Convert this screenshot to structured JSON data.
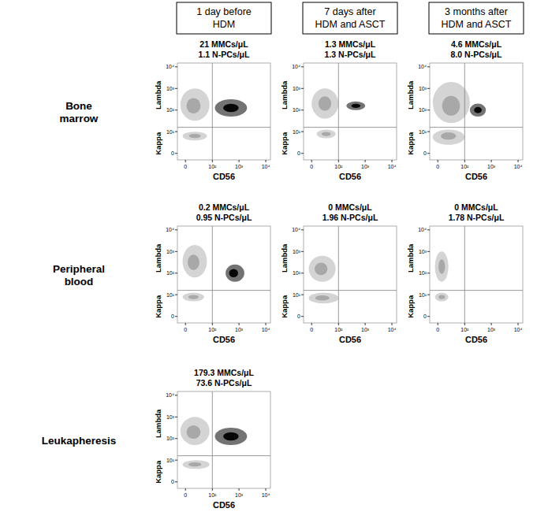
{
  "column_headers": [
    [
      "1 day before",
      "HDM"
    ],
    [
      "7 days after",
      "HDM and ASCT"
    ],
    [
      "3 months after",
      "HDM and ASCT"
    ]
  ],
  "row_labels": [
    [
      "Bone",
      "marrow"
    ],
    [
      "Peripheral",
      "blood"
    ],
    [
      "Leukapheresis"
    ]
  ],
  "chart_data": [
    {
      "type": "scatter",
      "title": "21 MMCs/μL",
      "subtitle": "1.1 N-PCs/μL",
      "xlabel": "CD56",
      "y_labels": {
        "upper": "Lambda",
        "lower": "Kappa"
      },
      "log": true,
      "xlim": [
        -15,
        15000
      ],
      "ylim": [
        -1.5,
        15000
      ],
      "xticks": [
        0,
        {
          "value": 100,
          "label": "10²"
        },
        {
          "value": 1000,
          "label": "10³"
        },
        {
          "value": 10000,
          "label": "10⁴"
        }
      ],
      "yticks": [
        0,
        {
          "value": 10,
          "label": "10¹"
        },
        {
          "value": 100,
          "label": "10²"
        },
        {
          "value": 1000,
          "label": "10³"
        },
        {
          "value": 10000,
          "label": "10⁴"
        }
      ],
      "gate": {
        "x": 100,
        "y": 16
      },
      "series": [
        {
          "color": "#a0a0a0",
          "x": [
            15,
            18
          ],
          "values": [
            158,
            6.2
          ],
          "x_range": [
            [
              -9,
              78
            ],
            [
              -5,
              62
            ]
          ],
          "y_range": [
            [
              32,
              1000
            ],
            [
              3.7,
              10
            ]
          ]
        },
        {
          "color": "#000000",
          "x": [
            500
          ],
          "values": [
            126
          ],
          "x_range": [
            [
              125,
              2000
            ]
          ],
          "y_range": [
            [
              50,
              316
            ]
          ]
        }
      ]
    },
    {
      "type": "scatter",
      "title": "1.3 MMCs/μL",
      "subtitle": "1.3 N-PCs/μL",
      "xlabel": "CD56",
      "y_labels": {
        "upper": "Lambda",
        "lower": "Kappa"
      },
      "log": true,
      "xlim": [
        -15,
        15000
      ],
      "ylim": [
        -1.5,
        15000
      ],
      "xticks": [
        0,
        {
          "value": 100,
          "label": "10²"
        },
        {
          "value": 1000,
          "label": "10³"
        },
        {
          "value": 10000,
          "label": "10⁴"
        }
      ],
      "yticks": [
        0,
        {
          "value": 10,
          "label": "10¹"
        },
        {
          "value": 100,
          "label": "10²"
        },
        {
          "value": 1000,
          "label": "10³"
        },
        {
          "value": 10000,
          "label": "10⁴"
        }
      ],
      "gate": {
        "x": 100,
        "y": 16
      },
      "series": [
        {
          "color": "#a0a0a0",
          "x": [
            28,
            32
          ],
          "values": [
            200,
            7.8
          ],
          "x_range": [
            [
              0,
              99
            ],
            [
              9,
              78
            ]
          ],
          "y_range": [
            [
              40,
              1000
            ],
            [
              4.8,
              12.5
            ]
          ]
        },
        {
          "color": "#000000",
          "x": [
            450
          ],
          "values": [
            158
          ],
          "x_range": [
            [
              200,
              1000
            ]
          ],
          "y_range": [
            [
              100,
              251
            ]
          ]
        }
      ]
    },
    {
      "type": "scatter",
      "title": "4.6 MMCs/μL",
      "subtitle": "8.0 N-PCs/μL",
      "xlabel": "CD56",
      "y_labels": {
        "upper": "Lambda",
        "lower": "Kappa"
      },
      "log": true,
      "xlim": [
        -15,
        15000
      ],
      "ylim": [
        -1.5,
        15000
      ],
      "xticks": [
        0,
        {
          "value": 100,
          "label": "10²"
        },
        {
          "value": 1000,
          "label": "10³"
        },
        {
          "value": 10000,
          "label": "10⁴"
        }
      ],
      "yticks": [
        0,
        {
          "value": 10,
          "label": "10¹"
        },
        {
          "value": 100,
          "label": "10²"
        },
        {
          "value": 1000,
          "label": "10³"
        },
        {
          "value": 10000,
          "label": "10⁴"
        }
      ],
      "gate": {
        "x": 100,
        "y": 16
      },
      "series": [
        {
          "color": "#a0a0a0",
          "x": [
            28,
            21
          ],
          "values": [
            158,
            6.2
          ],
          "x_range": [
            [
              -9,
              157
            ],
            [
              -9,
              99
            ]
          ],
          "y_range": [
            [
              25,
              2000
            ],
            [
              2.1,
              12.5
            ]
          ]
        },
        {
          "color": "#000000",
          "x": [
            316
          ],
          "values": [
            100
          ],
          "x_range": [
            [
              157,
              628
            ]
          ],
          "y_range": [
            [
              50,
              200
            ]
          ]
        }
      ]
    },
    {
      "type": "scatter",
      "title": "0.2 MMCs/μL",
      "subtitle": "0.95 N-PCs/μL",
      "xlabel": "CD56",
      "y_labels": {
        "upper": "Lambda",
        "lower": "Kappa"
      },
      "log": true,
      "xlim": [
        -15,
        15000
      ],
      "ylim": [
        -1.5,
        15000
      ],
      "xticks": [
        0,
        {
          "value": 100,
          "label": "10²"
        },
        {
          "value": 1000,
          "label": "10³"
        },
        {
          "value": 10000,
          "label": "10⁴"
        }
      ],
      "yticks": [
        0,
        {
          "value": 10,
          "label": "10¹"
        },
        {
          "value": 100,
          "label": "10²"
        },
        {
          "value": 1000,
          "label": "10³"
        },
        {
          "value": 10000,
          "label": "10⁴"
        }
      ],
      "gate": {
        "x": 100,
        "y": 16
      },
      "series": [
        {
          "color": "#a0a0a0",
          "x": [
            15,
            15
          ],
          "values": [
            316,
            7.8
          ],
          "x_range": [
            [
              -5,
              62
            ],
            [
              -5,
              48
            ]
          ],
          "y_range": [
            [
              63,
              2000
            ],
            [
              4.8,
              12.5
            ]
          ]
        },
        {
          "color": "#000000",
          "x": [
            628
          ],
          "values": [
            100
          ],
          "x_range": [
            [
              316,
              1585
            ]
          ],
          "y_range": [
            [
              40,
              251
            ]
          ]
        }
      ]
    },
    {
      "type": "scatter",
      "title": "0 MMCs/μL",
      "subtitle": "1.96 N-PCs/μL",
      "xlabel": "CD56",
      "y_labels": {
        "upper": "Lambda",
        "lower": "Kappa"
      },
      "log": true,
      "xlim": [
        -15,
        15000
      ],
      "ylim": [
        -1.5,
        15000
      ],
      "xticks": [
        0,
        {
          "value": 100,
          "label": "10²"
        },
        {
          "value": 1000,
          "label": "10³"
        },
        {
          "value": 10000,
          "label": "10⁴"
        }
      ],
      "yticks": [
        0,
        {
          "value": 10,
          "label": "10¹"
        },
        {
          "value": 100,
          "label": "10²"
        },
        {
          "value": 1000,
          "label": "10³"
        },
        {
          "value": 10000,
          "label": "10⁴"
        }
      ],
      "gate": {
        "x": 100,
        "y": 16
      },
      "series": [
        {
          "color": "#a0a0a0",
          "x": [
            18,
            21
          ],
          "values": [
            158,
            7
          ],
          "x_range": [
            [
              -5,
              78
            ],
            [
              -5,
              99
            ]
          ],
          "y_range": [
            [
              40,
              631
            ],
            [
              3.7,
              12.5
            ]
          ]
        },
        {
          "color": "#000000",
          "x": [],
          "values": [],
          "x_range": [],
          "y_range": []
        }
      ]
    },
    {
      "type": "scatter",
      "title": "0 MMCs/μL",
      "subtitle": "1.78 N-PCs/μL",
      "xlabel": "CD56",
      "y_labels": {
        "upper": "Lambda",
        "lower": "Kappa"
      },
      "log": true,
      "xlim": [
        -15,
        15000
      ],
      "ylim": [
        -1.5,
        15000
      ],
      "xticks": [
        0,
        {
          "value": 100,
          "label": "10²"
        },
        {
          "value": 1000,
          "label": "10³"
        },
        {
          "value": 10000,
          "label": "10⁴"
        }
      ],
      "yticks": [
        0,
        {
          "value": 10,
          "label": "10¹"
        },
        {
          "value": 100,
          "label": "10²"
        },
        {
          "value": 1000,
          "label": "10³"
        },
        {
          "value": 10000,
          "label": "10⁴"
        }
      ],
      "gate": {
        "x": 100,
        "y": 16
      },
      "series": [
        {
          "color": "#a0a0a0",
          "x": [
            7,
            7
          ],
          "values": [
            200,
            7.8
          ],
          "x_range": [
            [
              -5,
              21
            ],
            [
              -5,
              21
            ]
          ],
          "y_range": [
            [
              40,
              1000
            ],
            [
              4.8,
              12.5
            ]
          ]
        },
        {
          "color": "#000000",
          "x": [],
          "values": [],
          "x_range": [],
          "y_range": []
        }
      ]
    },
    {
      "type": "scatter",
      "title": "179.3 MMCs/μL",
      "subtitle": "73.6 N-PCs/μL",
      "xlabel": "CD56",
      "y_labels": {
        "upper": "Lambda",
        "lower": "Kappa"
      },
      "log": true,
      "xlim": [
        -15,
        15000
      ],
      "ylim": [
        -1.5,
        15000
      ],
      "xticks": [
        0,
        {
          "value": 100,
          "label": "10²"
        },
        {
          "value": 1000,
          "label": "10³"
        },
        {
          "value": 10000,
          "label": "10⁴"
        }
      ],
      "yticks": [
        0,
        {
          "value": 10,
          "label": "10¹"
        },
        {
          "value": 100,
          "label": "10²"
        },
        {
          "value": 1000,
          "label": "10³"
        },
        {
          "value": 10000,
          "label": "10⁴"
        }
      ],
      "gate": {
        "x": 100,
        "y": 16
      },
      "series": [
        {
          "color": "#a0a0a0",
          "x": [
            15,
            18
          ],
          "values": [
            200,
            6.2
          ],
          "x_range": [
            [
              -9,
              78
            ],
            [
              -5,
              78
            ]
          ],
          "y_range": [
            [
              50,
              1000
            ],
            [
              3.7,
              10
            ]
          ]
        },
        {
          "color": "#000000",
          "x": [
            500
          ],
          "values": [
            126
          ],
          "x_range": [
            [
              125,
              2000
            ]
          ],
          "y_range": [
            [
              50,
              316
            ]
          ]
        }
      ]
    }
  ]
}
